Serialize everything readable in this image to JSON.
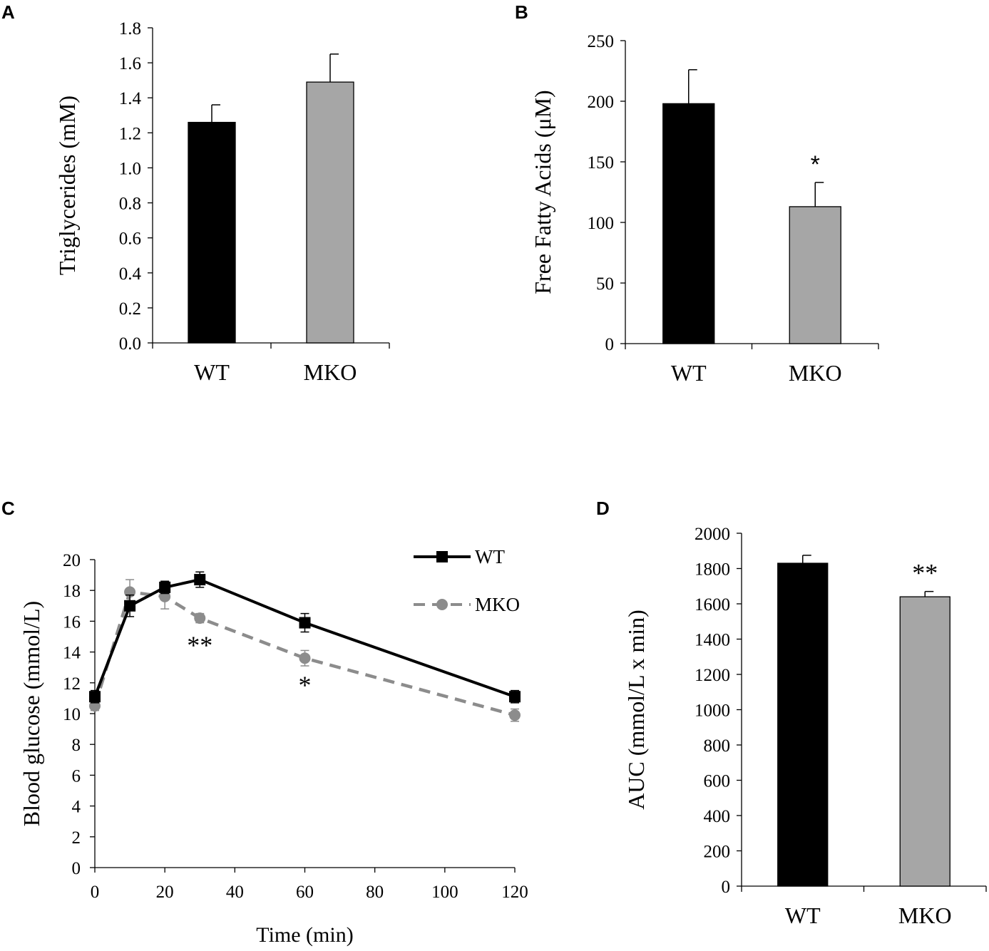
{
  "chart_data": [
    {
      "panel": "A",
      "type": "bar",
      "categories": [
        "WT",
        "MKO"
      ],
      "values": [
        1.26,
        1.49
      ],
      "errors": [
        0.1,
        0.16
      ],
      "colors": [
        "#000000",
        "#a6a6a6"
      ],
      "ylabel": "Triglycerides (mM)",
      "ylim": [
        0,
        1.8
      ],
      "yticks": [
        "0.0",
        "0.2",
        "0.4",
        "0.6",
        "0.8",
        "1.0",
        "1.2",
        "1.4",
        "1.6",
        "1.8"
      ],
      "annotations": [
        "",
        ""
      ]
    },
    {
      "panel": "B",
      "type": "bar",
      "categories": [
        "WT",
        "MKO"
      ],
      "values": [
        198,
        113
      ],
      "errors": [
        28,
        20
      ],
      "colors": [
        "#000000",
        "#a6a6a6"
      ],
      "ylabel": "Free Fatty Acids (μM)",
      "ylim": [
        0,
        250
      ],
      "yticks": [
        "0",
        "50",
        "100",
        "150",
        "200",
        "250"
      ],
      "annotations": [
        "",
        "*"
      ]
    },
    {
      "panel": "C",
      "type": "line",
      "xlabel": "Time (min)",
      "ylabel": "Blood glucose (mmol/L)",
      "xlim": [
        0,
        120
      ],
      "ylim": [
        0,
        20
      ],
      "xticks": [
        "0",
        "20",
        "40",
        "60",
        "80",
        "100",
        "120"
      ],
      "yticks": [
        "0",
        "2",
        "4",
        "6",
        "8",
        "10",
        "12",
        "14",
        "16",
        "18",
        "20"
      ],
      "x": [
        0,
        10,
        20,
        30,
        60,
        120
      ],
      "series": [
        {
          "name": "WT",
          "values": [
            11.1,
            17.0,
            18.2,
            18.7,
            15.9,
            11.1
          ],
          "errors": [
            0.4,
            0.7,
            0.4,
            0.5,
            0.6,
            0.4
          ],
          "color": "#000000",
          "marker": "square",
          "dash": "solid"
        },
        {
          "name": "MKO",
          "values": [
            10.5,
            17.9,
            17.6,
            16.2,
            13.6,
            9.9
          ],
          "errors": [
            0.3,
            0.8,
            0.8,
            0.3,
            0.5,
            0.4
          ],
          "color": "#8c8c8c",
          "marker": "circle",
          "dash": "dashed"
        }
      ],
      "annotations": [
        {
          "x": 30,
          "y": 16.2,
          "text": "**"
        },
        {
          "x": 60,
          "y": 13.6,
          "text": "*"
        }
      ]
    },
    {
      "panel": "D",
      "type": "bar",
      "categories": [
        "WT",
        "MKO"
      ],
      "values": [
        1830,
        1640
      ],
      "errors": [
        45,
        30
      ],
      "colors": [
        "#000000",
        "#a6a6a6"
      ],
      "ylabel": "AUC (mmol/L x min)",
      "ylim": [
        0,
        2000
      ],
      "yticks": [
        "0",
        "200",
        "400",
        "600",
        "800",
        "1000",
        "1200",
        "1400",
        "1600",
        "1800",
        "2000"
      ],
      "annotations": [
        "",
        "**"
      ]
    }
  ]
}
